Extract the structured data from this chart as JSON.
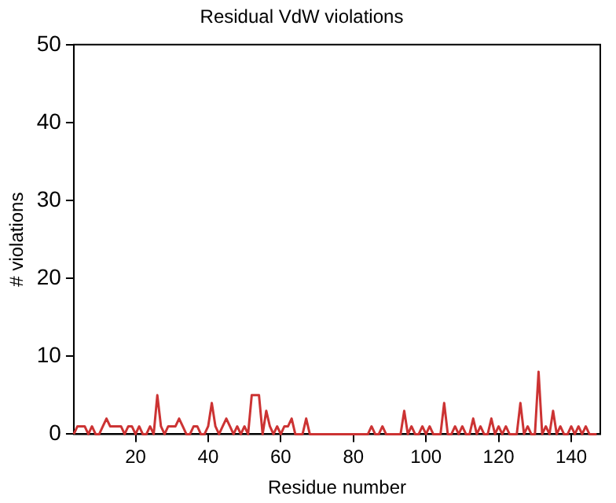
{
  "chart_data": {
    "type": "line",
    "title": "Residual VdW violations",
    "xlabel": "Residue number",
    "ylabel": "# violations",
    "x": [
      3,
      4,
      5,
      6,
      7,
      8,
      9,
      10,
      11,
      12,
      13,
      14,
      15,
      16,
      17,
      18,
      19,
      20,
      21,
      22,
      23,
      24,
      25,
      26,
      27,
      28,
      29,
      30,
      31,
      32,
      33,
      34,
      35,
      36,
      37,
      38,
      39,
      40,
      41,
      42,
      43,
      44,
      45,
      46,
      47,
      48,
      49,
      50,
      51,
      52,
      53,
      54,
      55,
      56,
      57,
      58,
      59,
      60,
      61,
      62,
      63,
      64,
      65,
      66,
      67,
      68,
      69,
      70,
      71,
      72,
      73,
      74,
      75,
      76,
      77,
      78,
      79,
      80,
      81,
      82,
      83,
      84,
      85,
      86,
      87,
      88,
      89,
      90,
      91,
      92,
      93,
      94,
      95,
      96,
      97,
      98,
      99,
      100,
      101,
      102,
      103,
      104,
      105,
      106,
      107,
      108,
      109,
      110,
      111,
      112,
      113,
      114,
      115,
      116,
      117,
      118,
      119,
      120,
      121,
      122,
      123,
      124,
      125,
      126,
      127,
      128,
      129,
      130,
      131,
      132,
      133,
      134,
      135,
      136,
      137,
      138,
      139,
      140,
      141,
      142,
      143,
      144,
      145,
      146,
      147
    ],
    "series": [
      {
        "color": "#cc3333",
        "values": [
          0,
          1,
          1,
          1,
          0,
          1,
          0,
          0,
          1,
          2,
          1,
          1,
          1,
          1,
          0,
          1,
          1,
          0,
          1,
          0,
          0,
          1,
          0,
          5,
          1,
          0,
          1,
          1,
          1,
          2,
          1,
          0,
          0,
          1,
          1,
          0,
          0,
          1,
          4,
          1,
          0,
          1,
          2,
          1,
          0,
          1,
          0,
          1,
          0,
          5,
          5,
          5,
          0,
          3,
          1,
          0,
          1,
          0,
          1,
          1,
          2,
          0,
          0,
          0,
          2,
          0,
          0,
          0,
          0,
          0,
          0,
          0,
          0,
          0,
          0,
          0,
          0,
          0,
          0,
          0,
          0,
          0,
          1,
          0,
          0,
          1,
          0,
          0,
          0,
          0,
          0,
          3,
          0,
          1,
          0,
          0,
          1,
          0,
          1,
          0,
          0,
          0,
          4,
          0,
          0,
          1,
          0,
          1,
          0,
          0,
          2,
          0,
          1,
          0,
          0,
          2,
          0,
          1,
          0,
          1,
          0,
          0,
          0,
          4,
          0,
          1,
          0,
          0,
          8,
          0,
          1,
          0,
          3,
          0,
          1,
          0,
          0,
          1,
          0,
          1,
          0,
          1,
          0,
          0,
          0
        ]
      }
    ],
    "xlim": [
      3,
      148
    ],
    "xticks": [
      20,
      40,
      60,
      80,
      100,
      120,
      140
    ],
    "ylim": [
      0,
      50
    ],
    "yticks": [
      0,
      10,
      20,
      30,
      40,
      50
    ],
    "grid": false,
    "legend": false,
    "marker": "none",
    "line_style": "solid"
  }
}
